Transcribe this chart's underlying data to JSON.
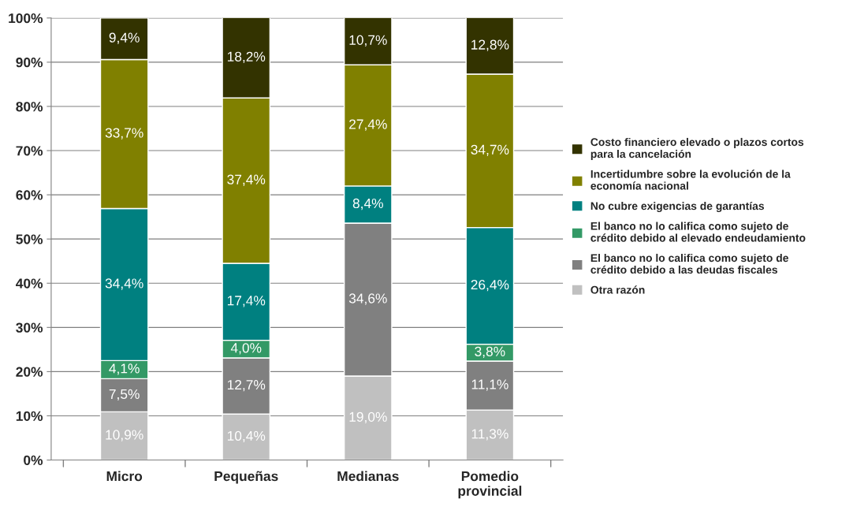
{
  "chart_data": {
    "type": "bar",
    "stacked": true,
    "categories": [
      "Micro",
      "Pequeñas",
      "Medianas",
      "Pomedio\nprovincial"
    ],
    "series": [
      {
        "name": "Otra razón",
        "color": "#c0c0c0",
        "values": [
          10.9,
          10.4,
          19.0,
          11.3
        ],
        "value_labels": [
          "10,9%",
          "10,4%",
          "19,0%",
          "11,3%"
        ]
      },
      {
        "name": "El banco no lo califica como sujeto de\ncrédito debido a las deudas fiscales",
        "color": "#808080",
        "values": [
          7.5,
          12.7,
          34.6,
          11.1
        ],
        "value_labels": [
          "7,5%",
          "12,7%",
          "34,6%",
          "11,1%"
        ]
      },
      {
        "name": "El banco no lo califica como sujeto de\ncrédito debido al elevado endeudamiento",
        "color": "#339966",
        "values": [
          4.1,
          4.0,
          null,
          3.8
        ],
        "value_labels": [
          "4,1%",
          "4,0%",
          null,
          "3,8%"
        ]
      },
      {
        "name": "No cubre exigencias de garantías",
        "color": "#008080",
        "values": [
          34.4,
          17.4,
          8.4,
          26.4
        ],
        "value_labels": [
          "34,4%",
          "17,4%",
          "8,4%",
          "26,4%"
        ]
      },
      {
        "name": "Incertidumbre sobre la evolución de la\neconomía nacional",
        "color": "#808000",
        "values": [
          33.7,
          37.4,
          27.4,
          34.7
        ],
        "value_labels": [
          "33,7%",
          "37,4%",
          "27,4%",
          "34,7%"
        ]
      },
      {
        "name": "Costo financiero elevado o plazos cortos\npara la cancelación",
        "color": "#333300",
        "values": [
          9.4,
          18.2,
          10.7,
          12.8
        ],
        "value_labels": [
          "9,4%",
          "18,2%",
          "10,7%",
          "12,8%"
        ]
      }
    ],
    "ylim": [
      0,
      100
    ],
    "yticks": [
      {
        "value": 0,
        "label": "0%"
      },
      {
        "value": 10,
        "label": "10%"
      },
      {
        "value": 20,
        "label": "20%"
      },
      {
        "value": 30,
        "label": "30%"
      },
      {
        "value": 40,
        "label": "40%"
      },
      {
        "value": 50,
        "label": "50%"
      },
      {
        "value": 60,
        "label": "60%"
      },
      {
        "value": 70,
        "label": "70%"
      },
      {
        "value": 80,
        "label": "80%"
      },
      {
        "value": 90,
        "label": "90%"
      },
      {
        "value": 100,
        "label": "100%"
      }
    ],
    "grid": "y",
    "legend": "right"
  }
}
